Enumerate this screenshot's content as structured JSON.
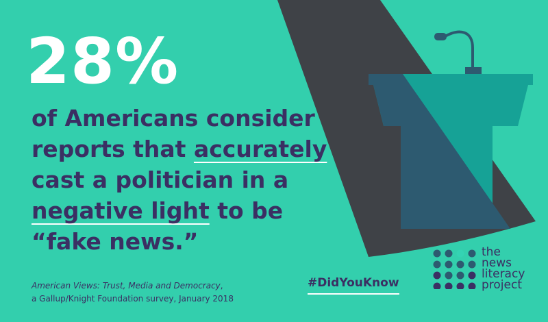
{
  "stat": "28%",
  "statement": {
    "line1": "of Americans consider",
    "line2_before": "reports that ",
    "line2_underlined": "accurately",
    "line3": "cast a politician in a",
    "line4_underlined": "negative light",
    "line4_after": " to be",
    "line5": "“fake news.”"
  },
  "source": {
    "title": "American Views: Trust, Media and Democracy",
    "title_suffix": ",",
    "line2": "a Gallup/Knight Foundation survey, January 2018"
  },
  "hashtag": "#DidYouKnow",
  "logo": {
    "line1": "the",
    "line2": "news",
    "line3": "literacy",
    "line4": "project"
  },
  "colors": {
    "background": "#33cfad",
    "stat_text": "#ffffff",
    "body_text": "#3b2f63",
    "spotlight": "#3f4247",
    "podium_lit": "#16a296",
    "podium_shadow": "#2d5a70",
    "accent_dot": "#34d3b3"
  },
  "icons": [
    "spotlight-cone",
    "podium-icon",
    "microphone-icon",
    "logo-dot-grid"
  ]
}
